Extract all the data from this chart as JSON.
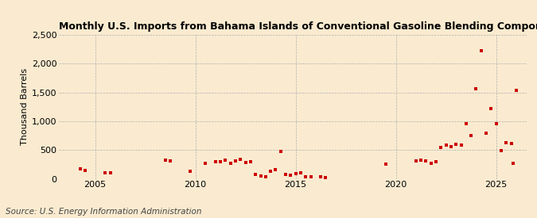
{
  "title": "Monthly U.S. Imports from Bahama Islands of Conventional Gasoline Blending Components",
  "ylabel": "Thousand Barrels",
  "source": "Source: U.S. Energy Information Administration",
  "background_color": "#faebd0",
  "marker_color": "#cc0000",
  "marker_size": 7,
  "ylim": [
    0,
    2500
  ],
  "yticks": [
    0,
    500,
    1000,
    1500,
    2000,
    2500
  ],
  "ytick_labels": [
    "0",
    "500",
    "1,000",
    "1,500",
    "2,000",
    "2,500"
  ],
  "xlim": [
    2003.2,
    2026.5
  ],
  "xticks": [
    2005,
    2010,
    2015,
    2020,
    2025
  ],
  "data_points": [
    [
      2004.25,
      170
    ],
    [
      2004.5,
      150
    ],
    [
      2005.5,
      110
    ],
    [
      2005.75,
      100
    ],
    [
      2008.5,
      320
    ],
    [
      2008.75,
      310
    ],
    [
      2009.75,
      130
    ],
    [
      2010.5,
      270
    ],
    [
      2011.0,
      300
    ],
    [
      2011.25,
      290
    ],
    [
      2011.5,
      320
    ],
    [
      2011.75,
      270
    ],
    [
      2012.0,
      310
    ],
    [
      2012.25,
      340
    ],
    [
      2012.5,
      280
    ],
    [
      2012.75,
      290
    ],
    [
      2013.0,
      80
    ],
    [
      2013.25,
      50
    ],
    [
      2013.5,
      30
    ],
    [
      2013.75,
      130
    ],
    [
      2014.0,
      160
    ],
    [
      2014.25,
      470
    ],
    [
      2014.5,
      70
    ],
    [
      2014.75,
      60
    ],
    [
      2015.0,
      90
    ],
    [
      2015.25,
      100
    ],
    [
      2015.5,
      30
    ],
    [
      2015.75,
      40
    ],
    [
      2016.25,
      30
    ],
    [
      2016.5,
      20
    ],
    [
      2019.5,
      260
    ],
    [
      2021.0,
      310
    ],
    [
      2021.25,
      330
    ],
    [
      2021.5,
      310
    ],
    [
      2021.75,
      270
    ],
    [
      2022.0,
      300
    ],
    [
      2022.25,
      550
    ],
    [
      2022.5,
      580
    ],
    [
      2022.75,
      560
    ],
    [
      2023.0,
      600
    ],
    [
      2023.25,
      580
    ],
    [
      2023.5,
      960
    ],
    [
      2023.75,
      750
    ],
    [
      2024.0,
      1570
    ],
    [
      2024.25,
      2220
    ],
    [
      2024.5,
      790
    ],
    [
      2024.75,
      1220
    ],
    [
      2025.0,
      960
    ],
    [
      2025.25,
      490
    ],
    [
      2025.5,
      620
    ],
    [
      2025.75,
      610
    ],
    [
      2025.85,
      270
    ],
    [
      2026.0,
      1540
    ]
  ],
  "figsize": [
    6.75,
    2.75
  ],
  "dpi": 100,
  "title_fontsize": 9,
  "tick_fontsize": 8,
  "ylabel_fontsize": 8,
  "source_fontsize": 7.5
}
